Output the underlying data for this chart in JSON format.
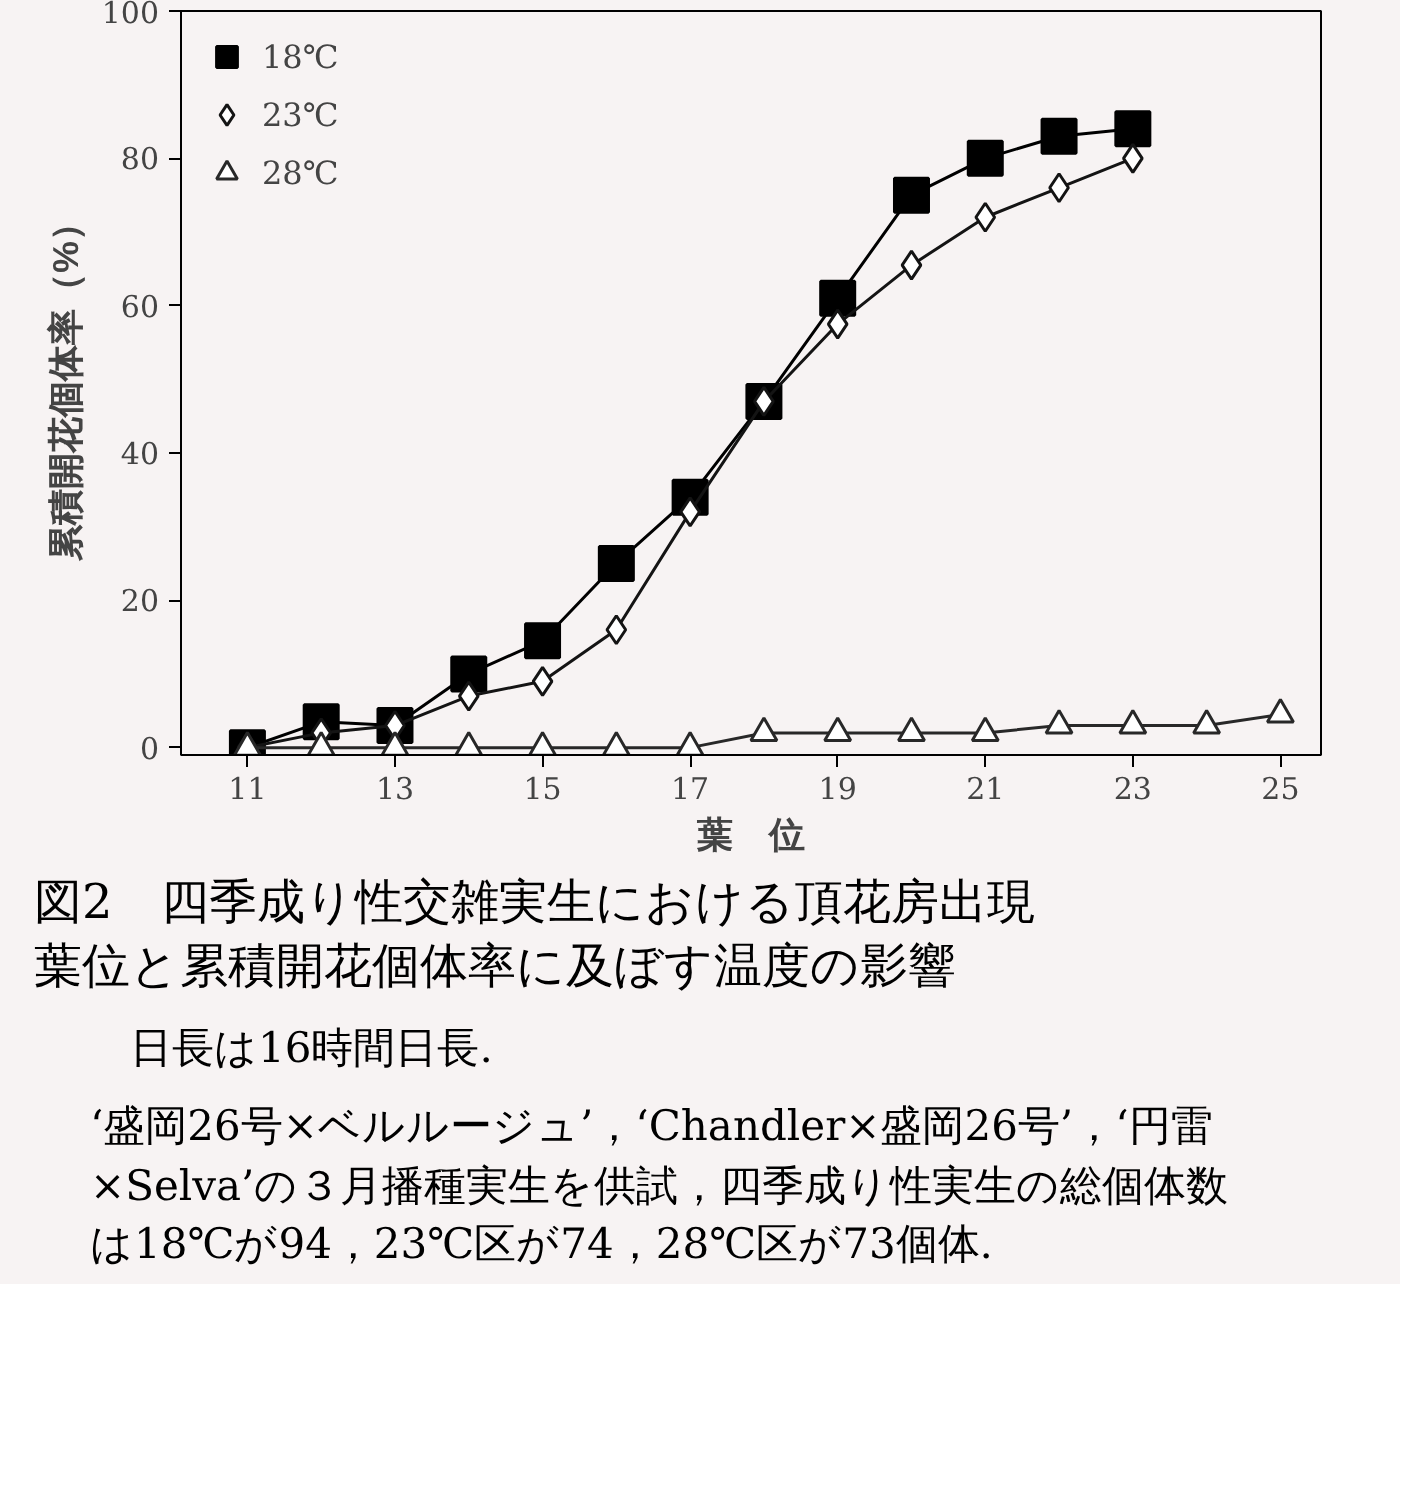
{
  "chart_data": {
    "type": "line",
    "title": "図2　四季成り性交雑実生における頂花房出現葉位と累積開花個体率に及ぼす温度の影響",
    "xlabel": "葉　位",
    "ylabel": "累積開花個体率（%）",
    "x": [
      11,
      12,
      13,
      14,
      15,
      16,
      17,
      18,
      19,
      20,
      21,
      22,
      23,
      24,
      25
    ],
    "series": [
      {
        "name": "18℃",
        "color": "#000000",
        "marker": "square",
        "values": [
          0,
          3.5,
          3,
          10,
          14.5,
          25,
          34,
          47,
          61,
          75,
          80,
          83,
          84,
          null,
          null
        ]
      },
      {
        "name": "23℃",
        "color": "#141414",
        "marker": "diamond",
        "values": [
          0,
          2,
          3,
          7,
          9,
          16,
          32,
          47,
          57.5,
          65.5,
          72,
          76,
          80,
          null,
          null
        ]
      },
      {
        "name": "28℃",
        "color": "#282828",
        "marker": "triangle",
        "values": [
          0,
          0,
          0,
          0,
          0,
          0,
          0,
          2,
          2,
          2,
          2,
          3,
          3,
          3,
          4.5
        ]
      }
    ],
    "xlim": [
      10.1,
      25.55
    ],
    "xticks": [
      11,
      13,
      15,
      17,
      19,
      21,
      23,
      25
    ],
    "ylim": [
      -1,
      100
    ],
    "yticks": [
      0,
      20,
      40,
      60,
      80,
      100
    ],
    "grid": false,
    "legend": "top left",
    "line_style": "solid",
    "annotations": [
      "日長は16時間日長.",
      "‘盛岡26号×ベルルージュ’，‘Chandler×盛岡26号’，‘円雷×Selva’の３月播種実生を供試，四季成り性実生の総個体数は18℃が94，23℃区が74，28℃区が73個体."
    ]
  }
}
